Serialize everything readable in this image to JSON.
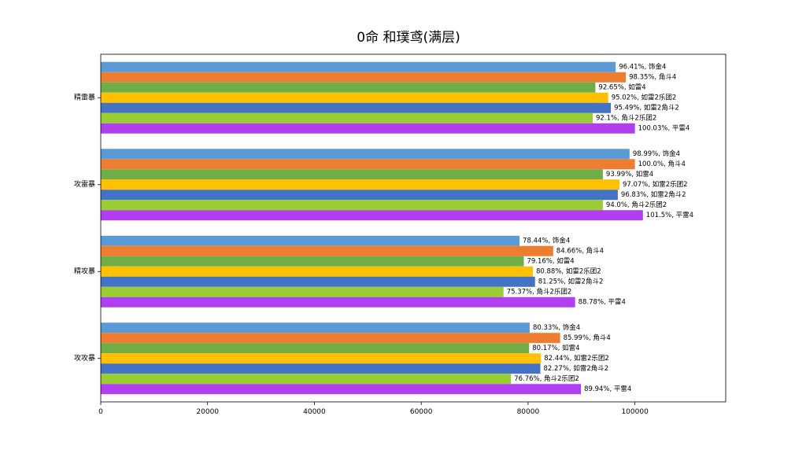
{
  "chart_data": {
    "type": "bar",
    "orientation": "horizontal",
    "title": "0命 和璞鸢(满层)",
    "xlabel": "",
    "ylabel": "",
    "xlim": [
      0,
      117000
    ],
    "x_ticks": [
      "0",
      "20000",
      "40000",
      "60000",
      "80000",
      "100000"
    ],
    "x_tick_values": [
      0,
      20000,
      40000,
      60000,
      80000,
      100000
    ],
    "grid": false,
    "categories": [
      "精雷暴",
      "攻雷暴",
      "精攻暴",
      "攻攻暴"
    ],
    "series": [
      {
        "name": "饰金4",
        "color": "#5b9bd5",
        "values": [
          96400,
          99000,
          78400,
          80300
        ],
        "labels": [
          "96.41%, 饰金4",
          "98.99%, 饰金4",
          "78.44%, 饰金4",
          "80.33%, 饰金4"
        ]
      },
      {
        "name": "角斗4",
        "color": "#ed7d31",
        "values": [
          98300,
          100000,
          84700,
          86000
        ],
        "labels": [
          "98.35%, 角斗4",
          "100.0%, 角斗4",
          "84.66%, 角斗4",
          "85.99%, 角斗4"
        ]
      },
      {
        "name": "如雷4",
        "color": "#70ad47",
        "values": [
          92600,
          94000,
          79200,
          80200
        ],
        "labels": [
          "92.65%, 如雷4",
          "93.99%, 如雷4",
          "79.16%, 如雷4",
          "80.17%, 如雷4"
        ]
      },
      {
        "name": "如雷2乐团2",
        "color": "#ffc000",
        "values": [
          95000,
          97100,
          80900,
          82400
        ],
        "labels": [
          "95.02%, 如雷2乐团2",
          "97.07%, 如雷2乐团2",
          "80.88%, 如雷2乐团2",
          "82.44%, 如雷2乐团2"
        ]
      },
      {
        "name": "如雷2角斗2",
        "color": "#4472c4",
        "values": [
          95500,
          96800,
          81300,
          82300
        ],
        "labels": [
          "95.49%, 如雷2角斗2",
          "96.83%, 如雷2角斗2",
          "81.25%, 如雷2角斗2",
          "82.27%, 如雷2角斗2"
        ]
      },
      {
        "name": "角斗2乐团2",
        "color": "#9acd32",
        "values": [
          92100,
          94000,
          75400,
          76800
        ],
        "labels": [
          "92.1%, 角斗2乐团2",
          "94.0%, 角斗2乐团2",
          "75.37%, 角斗2乐团2",
          "76.76%, 角斗2乐团2"
        ]
      },
      {
        "name": "平雷4",
        "color": "#b03ff0",
        "values": [
          100000,
          101500,
          88800,
          89900
        ],
        "labels": [
          "100.03%, 平雷4",
          "101.5%, 平雷4",
          "88.78%, 平雷4",
          "89.94%, 平雷4"
        ]
      }
    ]
  }
}
